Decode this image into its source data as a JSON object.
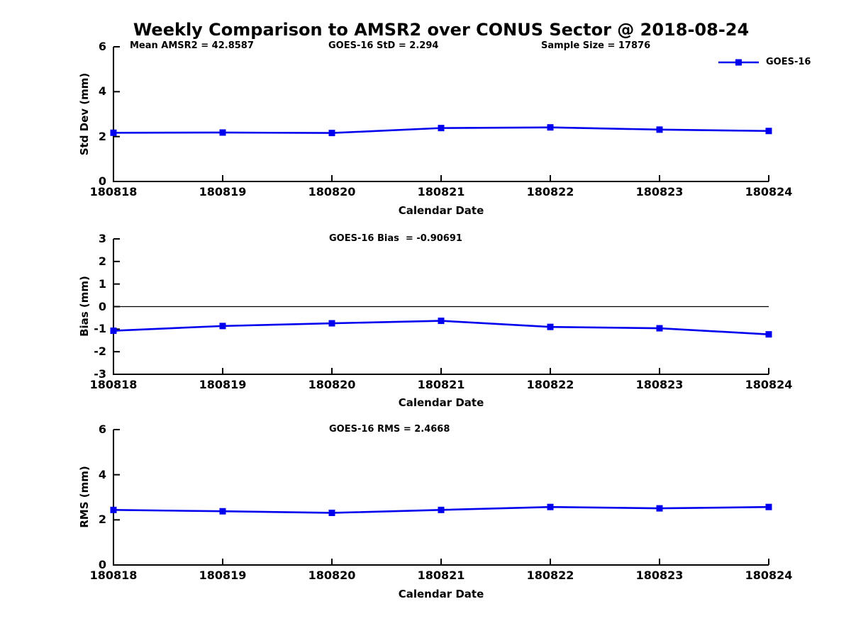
{
  "page": {
    "title": "Weekly Comparison to AMSR2 over CONUS Sector @ 2018-08-24"
  },
  "accent_color": "#0000ee",
  "legend": {
    "label": "GOES-16"
  },
  "chart_data": [
    {
      "type": "line",
      "panel": "std-dev",
      "annotations": {
        "left": "Mean AMSR2 = 42.8587",
        "center": "GOES-16 StD = 2.294",
        "right": "Sample Size = 17876"
      },
      "ylabel": "Std Dev (mm)",
      "xlabel": "Calendar Date",
      "x": [
        "180818",
        "180819",
        "180820",
        "180821",
        "180822",
        "180823",
        "180824"
      ],
      "series": [
        {
          "name": "GOES-16",
          "color": "#0000ee",
          "values": [
            2.17,
            2.18,
            2.16,
            2.38,
            2.41,
            2.31,
            2.25
          ]
        }
      ],
      "ylim": [
        0,
        6
      ],
      "yticks": [
        0,
        2,
        4,
        6
      ],
      "zero_line": false,
      "legend_position": "top-right",
      "grid": false
    },
    {
      "type": "line",
      "panel": "bias",
      "title": "GOES-16 Bias  = -0.90691",
      "ylabel": "Bias (mm)",
      "xlabel": "Calendar Date",
      "x": [
        "180818",
        "180819",
        "180820",
        "180821",
        "180822",
        "180823",
        "180824"
      ],
      "series": [
        {
          "name": "GOES-16",
          "color": "#0000ee",
          "values": [
            -1.07,
            -0.86,
            -0.74,
            -0.63,
            -0.9,
            -0.96,
            -1.23
          ]
        }
      ],
      "ylim": [
        -3,
        3
      ],
      "yticks": [
        -3,
        -2,
        -1,
        0,
        1,
        2,
        3
      ],
      "zero_line": true,
      "grid": false
    },
    {
      "type": "line",
      "panel": "rms",
      "title": "GOES-16 RMS = 2.4668",
      "ylabel": "RMS (mm)",
      "xlabel": "Calendar Date",
      "x": [
        "180818",
        "180819",
        "180820",
        "180821",
        "180822",
        "180823",
        "180824"
      ],
      "series": [
        {
          "name": "GOES-16",
          "color": "#0000ee",
          "values": [
            2.44,
            2.38,
            2.31,
            2.44,
            2.57,
            2.51,
            2.57
          ]
        }
      ],
      "ylim": [
        0,
        6
      ],
      "yticks": [
        0,
        2,
        4,
        6
      ],
      "zero_line": false,
      "grid": false
    }
  ]
}
